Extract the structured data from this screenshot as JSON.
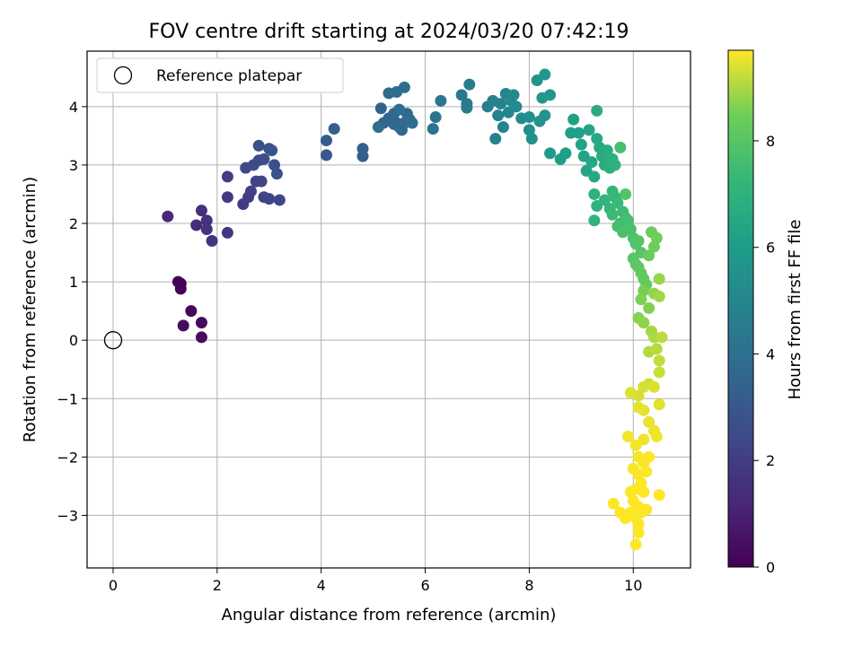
{
  "chart_data": {
    "type": "scatter",
    "title": "FOV centre drift starting at 2024/03/20 07:42:19",
    "xlabel": "Angular distance from reference (arcmin)",
    "ylabel": "Rotation from reference (arcmin)",
    "xlim": [
      -0.5,
      11.1
    ],
    "ylim": [
      -3.9,
      4.95
    ],
    "xticks": [
      0,
      2,
      4,
      6,
      8,
      10
    ],
    "yticks": [
      -3,
      -2,
      -1,
      0,
      1,
      2,
      3,
      4
    ],
    "grid": true,
    "legend": {
      "position": "top-left",
      "entries": [
        "Reference platepar"
      ]
    },
    "colorbar": {
      "label": "Hours from first FF file",
      "min": 0,
      "max": 9.7,
      "ticks": [
        0,
        2,
        4,
        6,
        8
      ],
      "colormap": "viridis"
    },
    "reference": {
      "x": 0,
      "y": 0,
      "label": "Reference platepar"
    },
    "series": [
      {
        "points": [
          [
            1.3,
            0.97,
            0.0
          ],
          [
            1.25,
            1.0,
            0.05
          ],
          [
            1.3,
            0.88,
            0.1
          ],
          [
            1.5,
            0.5,
            0.2
          ],
          [
            1.7,
            0.3,
            0.3
          ],
          [
            1.35,
            0.25,
            0.35
          ],
          [
            1.7,
            0.05,
            0.45
          ],
          [
            1.05,
            2.12,
            1.2
          ],
          [
            1.6,
            1.97,
            1.4
          ],
          [
            1.7,
            2.22,
            1.5
          ],
          [
            1.8,
            2.05,
            1.55
          ],
          [
            1.8,
            1.9,
            1.6
          ],
          [
            1.9,
            1.7,
            1.7
          ],
          [
            2.2,
            1.84,
            1.8
          ],
          [
            2.2,
            2.45,
            1.9
          ],
          [
            2.2,
            2.8,
            1.95
          ],
          [
            2.5,
            2.33,
            2.0
          ],
          [
            2.6,
            2.45,
            2.05
          ],
          [
            2.65,
            2.55,
            2.1
          ],
          [
            2.75,
            2.72,
            2.15
          ],
          [
            2.85,
            2.72,
            2.2
          ],
          [
            2.9,
            2.45,
            2.25
          ],
          [
            3.0,
            2.42,
            2.3
          ],
          [
            3.2,
            2.4,
            2.35
          ],
          [
            2.55,
            2.95,
            2.4
          ],
          [
            2.7,
            3.0,
            2.45
          ],
          [
            2.8,
            3.08,
            2.5
          ],
          [
            2.9,
            3.1,
            2.55
          ],
          [
            3.1,
            3.0,
            2.6
          ],
          [
            3.15,
            2.85,
            2.65
          ],
          [
            2.8,
            3.33,
            2.7
          ],
          [
            3.0,
            3.28,
            2.75
          ],
          [
            3.05,
            3.25,
            2.8
          ],
          [
            4.1,
            3.17,
            3.0
          ],
          [
            4.1,
            3.42,
            3.1
          ],
          [
            4.25,
            3.62,
            3.2
          ],
          [
            4.8,
            3.15,
            3.3
          ],
          [
            4.8,
            3.28,
            3.35
          ],
          [
            5.15,
            3.97,
            3.45
          ],
          [
            5.2,
            3.72,
            3.5
          ],
          [
            5.3,
            3.8,
            3.55
          ],
          [
            5.4,
            3.7,
            3.6
          ],
          [
            5.4,
            3.88,
            3.62
          ],
          [
            5.45,
            3.72,
            3.65
          ],
          [
            5.5,
            3.65,
            3.68
          ],
          [
            5.55,
            3.6,
            3.7
          ],
          [
            5.6,
            3.72,
            3.72
          ],
          [
            5.65,
            3.88,
            3.75
          ],
          [
            5.7,
            3.78,
            3.78
          ],
          [
            5.3,
            4.23,
            3.8
          ],
          [
            5.45,
            4.25,
            3.82
          ],
          [
            5.6,
            4.33,
            3.85
          ],
          [
            5.5,
            3.95,
            3.9
          ],
          [
            5.1,
            3.65,
            3.92
          ],
          [
            5.75,
            3.72,
            3.95
          ],
          [
            6.15,
            3.62,
            4.1
          ],
          [
            6.2,
            3.82,
            4.2
          ],
          [
            6.3,
            4.1,
            4.3
          ],
          [
            6.7,
            4.2,
            4.4
          ],
          [
            6.8,
            4.05,
            4.45
          ],
          [
            6.8,
            3.98,
            4.5
          ],
          [
            6.85,
            4.38,
            4.55
          ],
          [
            7.2,
            4.0,
            4.7
          ],
          [
            7.3,
            4.1,
            4.75
          ],
          [
            7.35,
            3.45,
            4.8
          ],
          [
            7.4,
            3.85,
            4.85
          ],
          [
            7.45,
            4.05,
            4.9
          ],
          [
            7.5,
            3.65,
            4.95
          ],
          [
            7.55,
            4.22,
            5.0
          ],
          [
            7.6,
            3.9,
            5.05
          ],
          [
            7.65,
            4.1,
            5.1
          ],
          [
            7.7,
            4.2,
            5.15
          ],
          [
            7.75,
            4.0,
            5.2
          ],
          [
            7.85,
            3.8,
            5.25
          ],
          [
            8.0,
            3.82,
            5.4
          ],
          [
            8.0,
            3.6,
            5.45
          ],
          [
            8.05,
            3.45,
            5.5
          ],
          [
            8.2,
            3.75,
            5.55
          ],
          [
            8.3,
            3.85,
            5.6
          ],
          [
            8.15,
            4.45,
            5.65
          ],
          [
            8.3,
            4.55,
            5.7
          ],
          [
            8.4,
            4.2,
            5.75
          ],
          [
            8.25,
            4.15,
            5.8
          ],
          [
            8.4,
            3.2,
            5.9
          ],
          [
            8.6,
            3.1,
            6.0
          ],
          [
            8.7,
            3.2,
            6.05
          ],
          [
            8.8,
            3.55,
            6.1
          ],
          [
            8.85,
            3.78,
            6.15
          ],
          [
            8.95,
            3.55,
            6.2
          ],
          [
            9.0,
            3.35,
            6.25
          ],
          [
            9.05,
            3.15,
            6.3
          ],
          [
            9.1,
            2.9,
            6.35
          ],
          [
            9.15,
            3.6,
            6.4
          ],
          [
            9.2,
            3.05,
            6.45
          ],
          [
            9.25,
            2.8,
            6.5
          ],
          [
            9.3,
            3.45,
            6.55
          ],
          [
            9.35,
            3.3,
            6.6
          ],
          [
            9.4,
            3.15,
            6.65
          ],
          [
            9.3,
            3.93,
            6.7
          ],
          [
            9.45,
            3.0,
            6.75
          ],
          [
            9.5,
            3.25,
            6.8
          ],
          [
            9.55,
            2.95,
            6.85
          ],
          [
            9.6,
            3.1,
            6.9
          ],
          [
            9.65,
            3.0,
            6.95
          ],
          [
            9.25,
            2.5,
            7.0
          ],
          [
            9.3,
            2.3,
            7.05
          ],
          [
            9.25,
            2.05,
            7.1
          ],
          [
            9.45,
            2.4,
            7.15
          ],
          [
            9.55,
            2.25,
            7.2
          ],
          [
            9.6,
            2.55,
            7.25
          ],
          [
            9.65,
            2.45,
            7.3
          ],
          [
            9.7,
            2.35,
            7.35
          ],
          [
            9.6,
            2.15,
            7.4
          ],
          [
            9.75,
            2.0,
            7.45
          ],
          [
            9.8,
            2.2,
            7.5
          ],
          [
            9.85,
            2.1,
            7.55
          ],
          [
            9.7,
            1.95,
            7.6
          ],
          [
            9.75,
            3.3,
            7.62
          ],
          [
            9.9,
            2.05,
            7.65
          ],
          [
            9.8,
            1.85,
            7.7
          ],
          [
            9.95,
            1.9,
            7.75
          ],
          [
            10.0,
            1.75,
            7.8
          ],
          [
            10.05,
            1.65,
            7.85
          ],
          [
            9.85,
            2.5,
            7.9
          ],
          [
            10.1,
            1.7,
            7.95
          ],
          [
            10.15,
            1.5,
            8.0
          ],
          [
            10.0,
            1.4,
            8.05
          ],
          [
            10.05,
            1.3,
            8.1
          ],
          [
            10.1,
            1.25,
            8.15
          ],
          [
            10.15,
            1.15,
            8.2
          ],
          [
            10.2,
            1.05,
            8.25
          ],
          [
            10.25,
            0.95,
            8.3
          ],
          [
            10.3,
            1.45,
            8.35
          ],
          [
            10.35,
            1.85,
            8.4
          ],
          [
            10.4,
            1.6,
            8.45
          ],
          [
            10.45,
            1.75,
            8.5
          ],
          [
            10.2,
            0.85,
            8.55
          ],
          [
            10.15,
            0.7,
            8.6
          ],
          [
            10.3,
            0.55,
            8.65
          ],
          [
            10.1,
            0.38,
            8.7
          ],
          [
            10.2,
            0.3,
            8.75
          ],
          [
            10.4,
            0.8,
            8.8
          ],
          [
            10.5,
            1.05,
            8.85
          ],
          [
            10.5,
            0.75,
            8.9
          ],
          [
            10.35,
            0.15,
            8.95
          ],
          [
            10.4,
            0.05,
            9.0
          ],
          [
            10.3,
            -0.2,
            9.05
          ],
          [
            10.45,
            -0.15,
            9.1
          ],
          [
            10.55,
            0.05,
            9.15
          ],
          [
            10.5,
            -0.35,
            9.2
          ],
          [
            10.5,
            -0.55,
            9.25
          ],
          [
            10.3,
            -0.75,
            9.3
          ],
          [
            10.2,
            -0.8,
            9.35
          ],
          [
            10.1,
            -0.95,
            9.38
          ],
          [
            9.95,
            -0.9,
            9.4
          ],
          [
            10.4,
            -0.8,
            9.42
          ],
          [
            10.5,
            -1.1,
            9.45
          ],
          [
            10.2,
            -1.2,
            9.48
          ],
          [
            10.1,
            -1.15,
            9.5
          ],
          [
            10.3,
            -1.4,
            9.52
          ],
          [
            10.4,
            -1.55,
            9.55
          ],
          [
            10.2,
            -1.7,
            9.57
          ],
          [
            10.45,
            -1.65,
            9.6
          ],
          [
            9.9,
            -1.65,
            9.6
          ],
          [
            10.05,
            -1.8,
            9.62
          ],
          [
            10.1,
            -2.0,
            9.63
          ],
          [
            10.2,
            -2.1,
            9.65
          ],
          [
            10.0,
            -2.2,
            9.66
          ],
          [
            10.1,
            -2.3,
            9.67
          ],
          [
            10.15,
            -2.45,
            9.68
          ],
          [
            10.05,
            -2.55,
            9.69
          ],
          [
            10.2,
            -2.6,
            9.7
          ],
          [
            10.0,
            -2.75,
            9.7
          ],
          [
            10.1,
            -2.85,
            9.7
          ],
          [
            9.95,
            -2.95,
            9.7
          ],
          [
            10.15,
            -2.95,
            9.7
          ],
          [
            10.05,
            -3.05,
            9.7
          ],
          [
            10.1,
            -3.15,
            9.7
          ],
          [
            10.1,
            -3.3,
            9.7
          ],
          [
            10.05,
            -3.5,
            9.7
          ],
          [
            9.85,
            -3.05,
            9.7
          ],
          [
            9.75,
            -2.95,
            9.7
          ],
          [
            9.62,
            -2.8,
            9.7
          ],
          [
            10.25,
            -2.9,
            9.7
          ],
          [
            10.5,
            -2.65,
            9.7
          ],
          [
            9.95,
            -2.6,
            9.7
          ],
          [
            10.25,
            -2.25,
            9.7
          ],
          [
            10.3,
            -2.0,
            9.7
          ]
        ]
      }
    ]
  }
}
